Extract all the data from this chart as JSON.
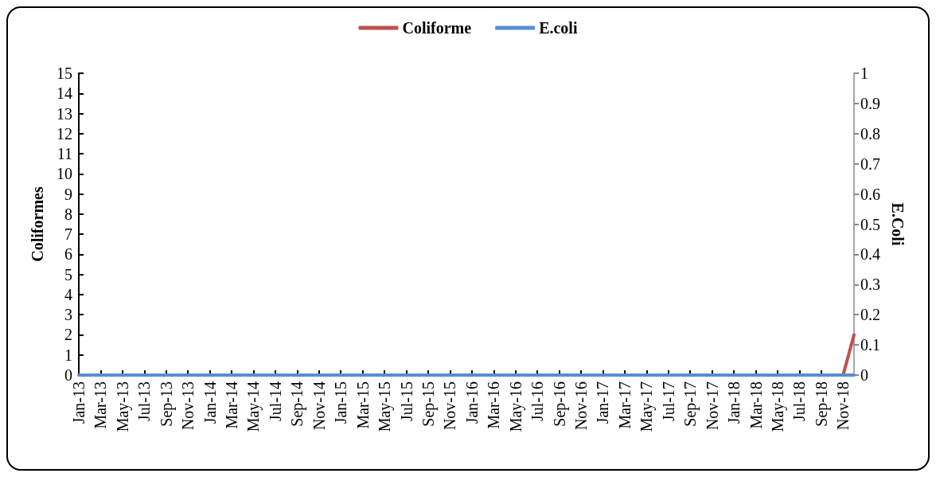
{
  "chart_data": {
    "type": "line",
    "xlabel": null,
    "ylabel": "Coliformes",
    "y2label": "E.Coli",
    "categories": [
      "Jan-13",
      null,
      "Mar-13",
      null,
      "May-13",
      null,
      "Jul-13",
      null,
      "Sep-13",
      null,
      "Nov-13",
      null,
      "Jan-14",
      null,
      "Mar-14",
      null,
      "May-14",
      null,
      "Jul-14",
      null,
      "Sep-14",
      null,
      "Nov-14",
      null,
      "Jan-15",
      null,
      "Mar-15",
      null,
      "May-15",
      null,
      "Jul-15",
      null,
      "Sep-15",
      null,
      "Nov-15",
      null,
      "Jan-16",
      null,
      "Mar-16",
      null,
      "May-16",
      null,
      "Jul-16",
      null,
      "Sep-16",
      null,
      "Nov-16",
      null,
      "Jan-17",
      null,
      "Mar-17",
      null,
      "May-17",
      null,
      "Jul-17",
      null,
      "Sep-17",
      null,
      "Nov-17",
      null,
      "Jan-18",
      null,
      "Mar-18",
      null,
      "May-18",
      null,
      "Jul-18",
      null,
      "Sep-18",
      null,
      "Nov-18",
      null
    ],
    "series": [
      {
        "name": "Coliforme",
        "color": "#c0504d",
        "values": [
          null,
          null,
          null,
          null,
          null,
          null,
          null,
          null,
          null,
          null,
          null,
          null,
          null,
          null,
          null,
          null,
          null,
          null,
          null,
          null,
          null,
          null,
          null,
          null,
          null,
          null,
          null,
          null,
          null,
          null,
          null,
          null,
          null,
          null,
          null,
          null,
          null,
          null,
          null,
          null,
          null,
          null,
          null,
          null,
          null,
          null,
          null,
          null,
          null,
          null,
          null,
          null,
          null,
          null,
          null,
          null,
          null,
          null,
          null,
          null,
          null,
          null,
          null,
          null,
          null,
          null,
          null,
          null,
          null,
          null,
          0,
          2
        ]
      },
      {
        "name": "E.coli",
        "color": "#558ed5",
        "axis": "y2",
        "values": [
          0,
          0,
          0,
          0,
          0,
          0,
          0,
          0,
          0,
          0,
          0,
          0,
          0,
          0,
          0,
          0,
          0,
          0,
          0,
          0,
          0,
          0,
          0,
          0,
          0,
          0,
          0,
          0,
          0,
          0,
          0,
          0,
          0,
          0,
          0,
          0,
          0,
          0,
          0,
          0,
          0,
          0,
          0,
          0,
          0,
          0,
          0,
          0,
          0,
          0,
          0,
          0,
          0,
          0,
          0,
          0,
          0,
          0,
          0,
          0,
          0,
          0,
          0,
          0,
          0,
          0,
          0,
          0,
          0,
          0,
          0,
          0
        ]
      }
    ],
    "ylim": [
      0,
      15
    ],
    "yticks": [
      0,
      1,
      2,
      3,
      4,
      5,
      6,
      7,
      8,
      9,
      10,
      11,
      12,
      13,
      14,
      15
    ],
    "y2lim": [
      0,
      1
    ],
    "y2ticks": [
      0,
      0.1,
      0.2,
      0.3,
      0.4,
      0.5,
      0.6,
      0.7,
      0.8,
      0.9,
      1
    ],
    "grid": false,
    "legend": "top",
    "marker": "none",
    "line_style": "solid"
  }
}
